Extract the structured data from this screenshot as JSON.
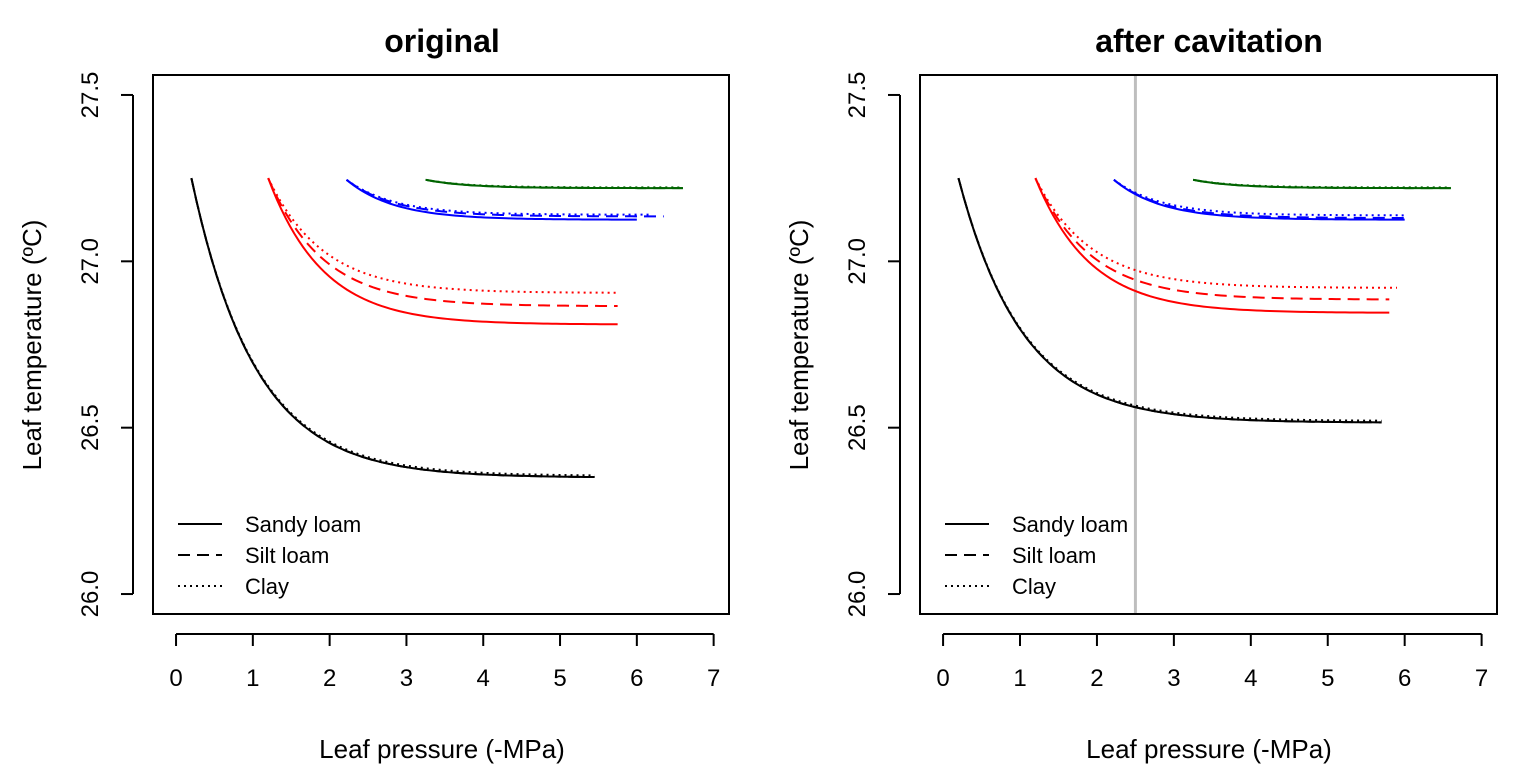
{
  "chart_data": [
    {
      "type": "line",
      "title": "original",
      "xlabel": "Leaf pressure (-MPa)",
      "ylabel": "Leaf temperature (ºC)",
      "xlim": [
        -0.3,
        7.2
      ],
      "ylim": [
        25.94,
        27.56
      ],
      "xticks": [
        "0",
        "1",
        "2",
        "3",
        "4",
        "5",
        "6",
        "7"
      ],
      "yticks": [
        "26.0",
        "26.5",
        "27.0",
        "27.5"
      ],
      "grid": false,
      "legend": {
        "position": "bottom-left",
        "entries": [
          {
            "label": "Sandy loam",
            "dash": "solid"
          },
          {
            "label": "Silt loam",
            "dash": "dashed"
          },
          {
            "label": "Clay",
            "dash": "dotted"
          }
        ]
      },
      "series": [
        {
          "color": "#000000",
          "dash": "solid",
          "x0": 0.2,
          "x1": 5.45,
          "y0": 27.25,
          "y1": 26.35,
          "k": 1.2
        },
        {
          "color": "#000000",
          "dash": "dashed",
          "x0": 0.2,
          "x1": 5.45,
          "y0": 27.25,
          "y1": 26.35,
          "k": 1.2
        },
        {
          "color": "#000000",
          "dash": "dotted",
          "x0": 0.2,
          "x1": 5.45,
          "y0": 27.25,
          "y1": 26.355,
          "k": 1.2
        },
        {
          "color": "#ff0000",
          "dash": "solid",
          "x0": 1.2,
          "x1": 5.75,
          "y0": 27.25,
          "y1": 26.81,
          "k": 1.4
        },
        {
          "color": "#ff0000",
          "dash": "dashed",
          "x0": 1.2,
          "x1": 5.75,
          "y0": 27.25,
          "y1": 26.865,
          "k": 1.4
        },
        {
          "color": "#ff0000",
          "dash": "dotted",
          "x0": 1.2,
          "x1": 5.75,
          "y0": 27.25,
          "y1": 26.905,
          "k": 1.4
        },
        {
          "color": "#0000ff",
          "dash": "solid",
          "x0": 2.22,
          "x1": 6.0,
          "y0": 27.245,
          "y1": 27.125,
          "k": 1.6
        },
        {
          "color": "#0000ff",
          "dash": "dashed",
          "x0": 2.22,
          "x1": 6.35,
          "y0": 27.245,
          "y1": 27.135,
          "k": 1.6
        },
        {
          "color": "#0000ff",
          "dash": "dotted",
          "x0": 2.22,
          "x1": 6.2,
          "y0": 27.245,
          "y1": 27.14,
          "k": 1.6
        },
        {
          "color": "#006400",
          "dash": "solid",
          "x0": 3.25,
          "x1": 6.6,
          "y0": 27.245,
          "y1": 27.22,
          "k": 1.8
        },
        {
          "color": "#006400",
          "dash": "dashed",
          "x0": 3.25,
          "x1": 6.6,
          "y0": 27.245,
          "y1": 27.22,
          "k": 1.8
        },
        {
          "color": "#006400",
          "dash": "dotted",
          "x0": 3.25,
          "x1": 6.6,
          "y0": 27.245,
          "y1": 27.222,
          "k": 1.8
        }
      ]
    },
    {
      "type": "line",
      "title": "after cavitation",
      "xlabel": "Leaf pressure (-MPa)",
      "ylabel": "Leaf temperature (ºC)",
      "xlim": [
        -0.3,
        7.2
      ],
      "ylim": [
        25.94,
        27.56
      ],
      "xticks": [
        "0",
        "1",
        "2",
        "3",
        "4",
        "5",
        "6",
        "7"
      ],
      "yticks": [
        "26.0",
        "26.5",
        "27.0",
        "27.5"
      ],
      "grid": false,
      "vline": {
        "x": 2.5,
        "color": "#bebebe"
      },
      "legend": {
        "position": "bottom-left",
        "entries": [
          {
            "label": "Sandy loam",
            "dash": "solid"
          },
          {
            "label": "Silt loam",
            "dash": "dashed"
          },
          {
            "label": "Clay",
            "dash": "dotted"
          }
        ]
      },
      "series": [
        {
          "color": "#000000",
          "dash": "solid",
          "x0": 0.2,
          "x1": 5.7,
          "y0": 27.25,
          "y1": 26.515,
          "k": 1.2
        },
        {
          "color": "#000000",
          "dash": "dashed",
          "x0": 0.2,
          "x1": 5.7,
          "y0": 27.25,
          "y1": 26.515,
          "k": 1.2
        },
        {
          "color": "#000000",
          "dash": "dotted",
          "x0": 0.2,
          "x1": 5.7,
          "y0": 27.25,
          "y1": 26.52,
          "k": 1.2
        },
        {
          "color": "#ff0000",
          "dash": "solid",
          "x0": 1.2,
          "x1": 5.8,
          "y0": 27.25,
          "y1": 26.845,
          "k": 1.4
        },
        {
          "color": "#ff0000",
          "dash": "dashed",
          "x0": 1.2,
          "x1": 5.8,
          "y0": 27.25,
          "y1": 26.885,
          "k": 1.4
        },
        {
          "color": "#ff0000",
          "dash": "dotted",
          "x0": 1.2,
          "x1": 5.9,
          "y0": 27.25,
          "y1": 26.92,
          "k": 1.4
        },
        {
          "color": "#0000ff",
          "dash": "solid",
          "x0": 2.22,
          "x1": 6.0,
          "y0": 27.245,
          "y1": 27.125,
          "k": 1.6
        },
        {
          "color": "#0000ff",
          "dash": "dashed",
          "x0": 2.22,
          "x1": 6.0,
          "y0": 27.245,
          "y1": 27.13,
          "k": 1.6
        },
        {
          "color": "#0000ff",
          "dash": "dotted",
          "x0": 2.22,
          "x1": 6.0,
          "y0": 27.245,
          "y1": 27.138,
          "k": 1.6
        },
        {
          "color": "#006400",
          "dash": "solid",
          "x0": 3.25,
          "x1": 6.6,
          "y0": 27.245,
          "y1": 27.22,
          "k": 1.8
        },
        {
          "color": "#006400",
          "dash": "dashed",
          "x0": 3.25,
          "x1": 6.6,
          "y0": 27.245,
          "y1": 27.22,
          "k": 1.8
        },
        {
          "color": "#006400",
          "dash": "dotted",
          "x0": 3.25,
          "x1": 6.6,
          "y0": 27.245,
          "y1": 27.222,
          "k": 1.8
        }
      ]
    }
  ]
}
